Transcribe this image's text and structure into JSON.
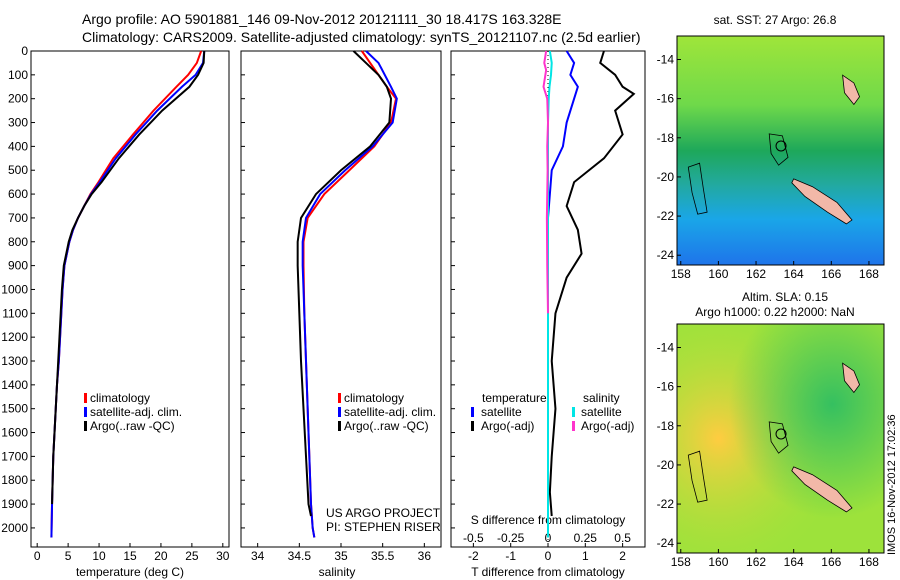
{
  "header": {
    "line1": "Argo profile: AO 5901881_146 09-Nov-2012 20121111_30 18.417S 163.328E",
    "line2": "Climatology: CARS2009. Satellite-adjusted climatology: synTS_20121107.nc (2.5d earlier)"
  },
  "colors": {
    "climatology": "#ff0000",
    "satellite": "#0000ff",
    "argo": "#000000",
    "salinity_satellite": "#00e5e5",
    "salinity_argo": "#ff33cc",
    "land": "#f2b8a8"
  },
  "chart_data": [
    {
      "id": "temperature",
      "type": "line",
      "xlabel": "temperature (deg C)",
      "ylabel": "",
      "xlim": [
        -1,
        31
      ],
      "ylim": [
        2080,
        0
      ],
      "xticks": [
        0,
        5,
        10,
        15,
        20,
        25,
        30
      ],
      "yticks": [
        0,
        100,
        200,
        300,
        400,
        500,
        600,
        700,
        800,
        900,
        1000,
        1100,
        1200,
        1300,
        1400,
        1500,
        1600,
        1700,
        1800,
        1900,
        2000
      ],
      "legend": [
        "climatology",
        "satellite-adj. clim.",
        "Argo(..raw -QC)"
      ],
      "series": [
        {
          "name": "climatology",
          "color": "#ff0000",
          "x": [
            26.5,
            25.8,
            24.4,
            22.5,
            18.8,
            15.5,
            12.3,
            9.9,
            8.6,
            7.6,
            6.6,
            5.8,
            5.2,
            4.8,
            4.4,
            4.1,
            3.9,
            3.7,
            3.5,
            3.2,
            3.0,
            2.8,
            2.6,
            2.5,
            2.4,
            2.3
          ],
          "y": [
            0,
            50,
            100,
            150,
            250,
            350,
            450,
            550,
            600,
            650,
            700,
            750,
            800,
            850,
            900,
            1000,
            1100,
            1200,
            1300,
            1400,
            1500,
            1600,
            1700,
            1800,
            1900,
            2040
          ]
        },
        {
          "name": "satellite-adj. clim.",
          "color": "#0000ff",
          "x": [
            27.0,
            26.8,
            25.6,
            23.4,
            19.4,
            15.9,
            12.7,
            10.1,
            8.7,
            7.6,
            6.6,
            5.8,
            5.2,
            4.8,
            4.4,
            4.1,
            3.9,
            3.7,
            3.5,
            3.2,
            3.0,
            2.8,
            2.6,
            2.5,
            2.4,
            2.3
          ],
          "y": [
            0,
            50,
            100,
            150,
            250,
            350,
            450,
            550,
            600,
            650,
            700,
            750,
            800,
            850,
            900,
            1000,
            1100,
            1200,
            1300,
            1400,
            1500,
            1600,
            1700,
            1800,
            1900,
            2040
          ]
        },
        {
          "name": "Argo(..raw -QC)",
          "color": "#000000",
          "x": [
            27.0,
            26.9,
            26.0,
            24.6,
            20.2,
            16.5,
            13.2,
            10.4,
            8.8,
            7.6,
            6.6,
            5.7,
            5.1,
            4.7,
            4.3,
            4.0,
            3.8,
            3.6,
            3.4,
            3.2,
            3.0,
            2.8,
            2.6,
            2.5,
            2.4
          ],
          "y": [
            0,
            50,
            100,
            150,
            250,
            350,
            450,
            550,
            600,
            650,
            700,
            750,
            800,
            850,
            900,
            1000,
            1100,
            1200,
            1300,
            1400,
            1500,
            1600,
            1700,
            1800,
            1900
          ]
        }
      ]
    },
    {
      "id": "salinity",
      "type": "line",
      "xlabel": "salinity",
      "ylabel": "",
      "xlim": [
        33.8,
        36.2
      ],
      "ylim": [
        2080,
        0
      ],
      "xticks": [
        34,
        34.5,
        35,
        35.5,
        36
      ],
      "legend": [
        "climatology",
        "satellite-adj. clim.",
        "Argo(..raw -QC)"
      ],
      "annotation": [
        "US ARGO PROJECT",
        "PI: STEPHEN RISER"
      ],
      "series": [
        {
          "name": "climatology",
          "color": "#ff0000",
          "x": [
            35.25,
            35.35,
            35.55,
            35.66,
            35.6,
            35.4,
            35.1,
            34.8,
            34.6,
            34.55,
            34.55,
            34.56,
            34.58,
            34.6,
            34.62,
            34.64,
            34.66,
            34.68
          ],
          "y": [
            0,
            50,
            150,
            200,
            300,
            400,
            500,
            600,
            700,
            800,
            900,
            1100,
            1300,
            1500,
            1700,
            1900,
            2000,
            2040
          ]
        },
        {
          "name": "satellite-adj. clim.",
          "color": "#0000ff",
          "x": [
            35.3,
            35.45,
            35.6,
            35.67,
            35.62,
            35.38,
            35.05,
            34.75,
            34.58,
            34.54,
            34.54,
            34.56,
            34.58,
            34.6,
            34.62,
            34.64,
            34.66,
            34.68
          ],
          "y": [
            0,
            50,
            150,
            200,
            300,
            400,
            500,
            600,
            700,
            800,
            900,
            1100,
            1300,
            1500,
            1700,
            1900,
            2000,
            2040
          ]
        },
        {
          "name": "Argo(..raw -QC)",
          "color": "#000000",
          "x": [
            35.15,
            35.3,
            35.45,
            35.55,
            35.6,
            35.58,
            35.35,
            35.0,
            34.7,
            34.52,
            34.48,
            34.48,
            34.5,
            34.52,
            34.55,
            34.58,
            34.61,
            34.64
          ],
          "y": [
            0,
            50,
            100,
            150,
            200,
            300,
            400,
            500,
            600,
            700,
            800,
            900,
            1100,
            1300,
            1500,
            1700,
            1900,
            1950
          ]
        }
      ]
    },
    {
      "id": "differences",
      "type": "line",
      "xlabel": "T difference from climatology",
      "xlabel_top": "S difference from climatology",
      "xlim": [
        -2.6,
        2.6
      ],
      "ylim": [
        2080,
        0
      ],
      "xticks": [
        -2,
        -1,
        0,
        1,
        2
      ],
      "sticks_labels": [
        "-0.5",
        "-0.25",
        "0",
        "0.25",
        "0.5"
      ],
      "sticks_values": [
        -0.5,
        -0.25,
        0,
        0.25,
        0.5
      ],
      "legend_titles": [
        "temperature",
        "salinity"
      ],
      "legend": [
        "satellite",
        "Argo(-adj)",
        "satellite",
        "Argo(-adj)"
      ],
      "series": [
        {
          "name": "temperature satellite",
          "color": "#0000ff",
          "x": [
            0.5,
            0.7,
            0.6,
            0.8,
            0.7,
            0.5,
            0.4,
            0.1,
            0.05,
            0,
            0,
            0,
            0,
            0,
            0
          ],
          "y": [
            0,
            50,
            100,
            150,
            200,
            300,
            400,
            500,
            600,
            700,
            900,
            1200,
            1500,
            1800,
            2040
          ]
        },
        {
          "name": "temperature Argo(-adj)",
          "color": "#000000",
          "x": [
            1.5,
            1.4,
            1.8,
            2.0,
            2.3,
            1.8,
            2.0,
            1.5,
            0.7,
            0.5,
            0.8,
            0.9,
            0.5,
            0.2,
            0.1,
            0.2,
            0.1,
            0.05,
            0.1
          ],
          "y": [
            0,
            50,
            100,
            150,
            180,
            250,
            350,
            450,
            550,
            650,
            750,
            850,
            950,
            1100,
            1300,
            1500,
            1700,
            1850,
            1950
          ]
        },
        {
          "name": "salinity satellite",
          "color": "#00e5e5",
          "x": [
            0.05,
            0.1,
            0.08,
            0.04,
            0.02,
            0,
            0,
            0,
            0,
            0,
            0,
            0
          ],
          "y": [
            0,
            50,
            100,
            150,
            200,
            300,
            500,
            800,
            1100,
            1400,
            1700,
            2040
          ]
        },
        {
          "name": "salinity Argo(-adj)",
          "color": "#ff33cc",
          "x": [
            -0.05,
            -0.1,
            -0.05,
            -0.12,
            -0.02,
            0,
            -0.02,
            -0.01,
            -0.02,
            -0.03,
            -0.02,
            -0.01,
            0
          ],
          "y": [
            0,
            50,
            80,
            150,
            200,
            300,
            400,
            500,
            600,
            700,
            900,
            1000,
            1100
          ]
        }
      ]
    }
  ],
  "map_top": {
    "title": "sat. SST: 27 Argo: 26.8",
    "xticks": [
      158,
      160,
      162,
      164,
      166,
      168
    ],
    "yticks": [
      -14,
      -16,
      -18,
      -20,
      -22,
      -24
    ],
    "xlim": [
      157.8,
      168.8
    ],
    "ylim": [
      -24.5,
      -12.8
    ],
    "argo_lon": 163.328,
    "argo_lat": -18.417
  },
  "map_bottom": {
    "title_line1": "Altim. SLA: 0.15",
    "title_line2": "Argo h1000: 0.22 h2000: NaN",
    "xticks": [
      158,
      160,
      162,
      164,
      166,
      168
    ],
    "yticks": [
      -14,
      -16,
      -18,
      -20,
      -22,
      -24
    ],
    "xlim": [
      157.8,
      168.8
    ],
    "ylim": [
      -24.5,
      -12.8
    ],
    "argo_lon": 163.328,
    "argo_lat": -18.417
  },
  "footer_stamp": "IMOS 16-Nov-2012 17:02:36"
}
